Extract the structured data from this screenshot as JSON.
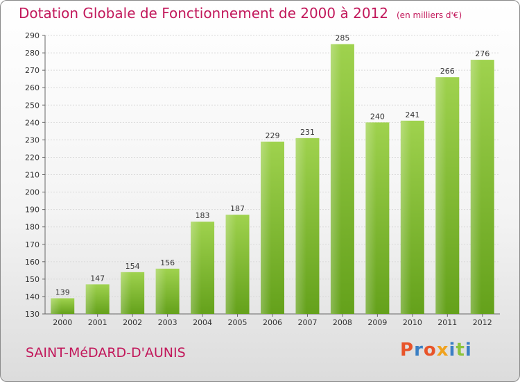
{
  "chart_data": {
    "type": "bar",
    "title": "Dotation Globale de Fonctionnement de 2000 à 2012",
    "unit_label": "(en milliers d'€)",
    "categories": [
      "2000",
      "2001",
      "2002",
      "2003",
      "2004",
      "2005",
      "2006",
      "2007",
      "2008",
      "2009",
      "2010",
      "2011",
      "2012"
    ],
    "values": [
      139,
      147,
      154,
      156,
      183,
      187,
      229,
      231,
      285,
      240,
      241,
      266,
      276
    ],
    "ylim": [
      130,
      290
    ],
    "yticks": [
      130,
      140,
      150,
      160,
      170,
      180,
      190,
      200,
      210,
      220,
      230,
      240,
      250,
      260,
      270,
      280,
      290
    ],
    "grid": true,
    "bar_color": "#8cc43c",
    "xlabel": "",
    "ylabel": ""
  },
  "footer": {
    "commune": "SAINT-MéDARD-D'AUNIS",
    "logo_text": "Proxiti",
    "logo_colors": [
      "#e8542a",
      "#3a7fc4",
      "#e8542a",
      "#f0a21e",
      "#3a7fc4",
      "#8cc43c",
      "#3a7fc4"
    ]
  }
}
